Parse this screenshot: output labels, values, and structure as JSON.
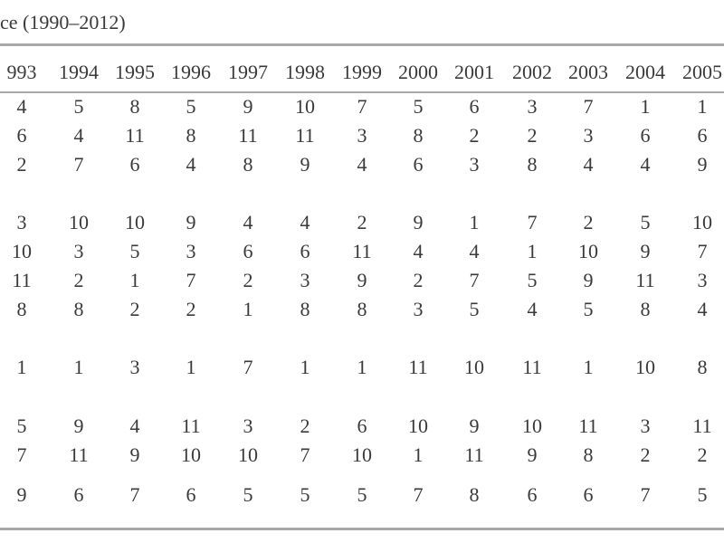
{
  "caption": "ce (1990–2012)",
  "table": {
    "headers": [
      "993",
      "1994",
      "1995",
      "1996",
      "1997",
      "1998",
      "1999",
      "2000",
      "2001",
      "2002",
      "2003",
      "2004",
      "2005"
    ],
    "rows": [
      [
        "4",
        "5",
        "8",
        "5",
        "9",
        "10",
        "7",
        "5",
        "6",
        "3",
        "7",
        "1",
        "1"
      ],
      [
        "6",
        "4",
        "11",
        "8",
        "11",
        "11",
        "3",
        "8",
        "2",
        "2",
        "3",
        "6",
        "6"
      ],
      [
        "2",
        "7",
        "6",
        "4",
        "8",
        "9",
        "4",
        "6",
        "3",
        "8",
        "4",
        "4",
        "9"
      ],
      [
        "3",
        "10",
        "10",
        "9",
        "4",
        "4",
        "2",
        "9",
        "1",
        "7",
        "2",
        "5",
        "10"
      ],
      [
        "10",
        "3",
        "5",
        "3",
        "6",
        "6",
        "11",
        "4",
        "4",
        "1",
        "10",
        "9",
        "7"
      ],
      [
        "11",
        "2",
        "1",
        "7",
        "2",
        "3",
        "9",
        "2",
        "7",
        "5",
        "9",
        "11",
        "3"
      ],
      [
        "8",
        "8",
        "2",
        "2",
        "1",
        "8",
        "8",
        "3",
        "5",
        "4",
        "5",
        "8",
        "4"
      ],
      [
        "1",
        "1",
        "3",
        "1",
        "7",
        "1",
        "1",
        "11",
        "10",
        "11",
        "1",
        "10",
        "8"
      ],
      [
        "5",
        "9",
        "4",
        "11",
        "3",
        "2",
        "6",
        "10",
        "9",
        "10",
        "11",
        "3",
        "11"
      ],
      [
        "7",
        "11",
        "9",
        "10",
        "10",
        "7",
        "10",
        "1",
        "11",
        "9",
        "8",
        "2",
        "2"
      ],
      [
        "9",
        "6",
        "7",
        "6",
        "5",
        "5",
        "5",
        "7",
        "8",
        "6",
        "6",
        "7",
        "5"
      ]
    ]
  }
}
